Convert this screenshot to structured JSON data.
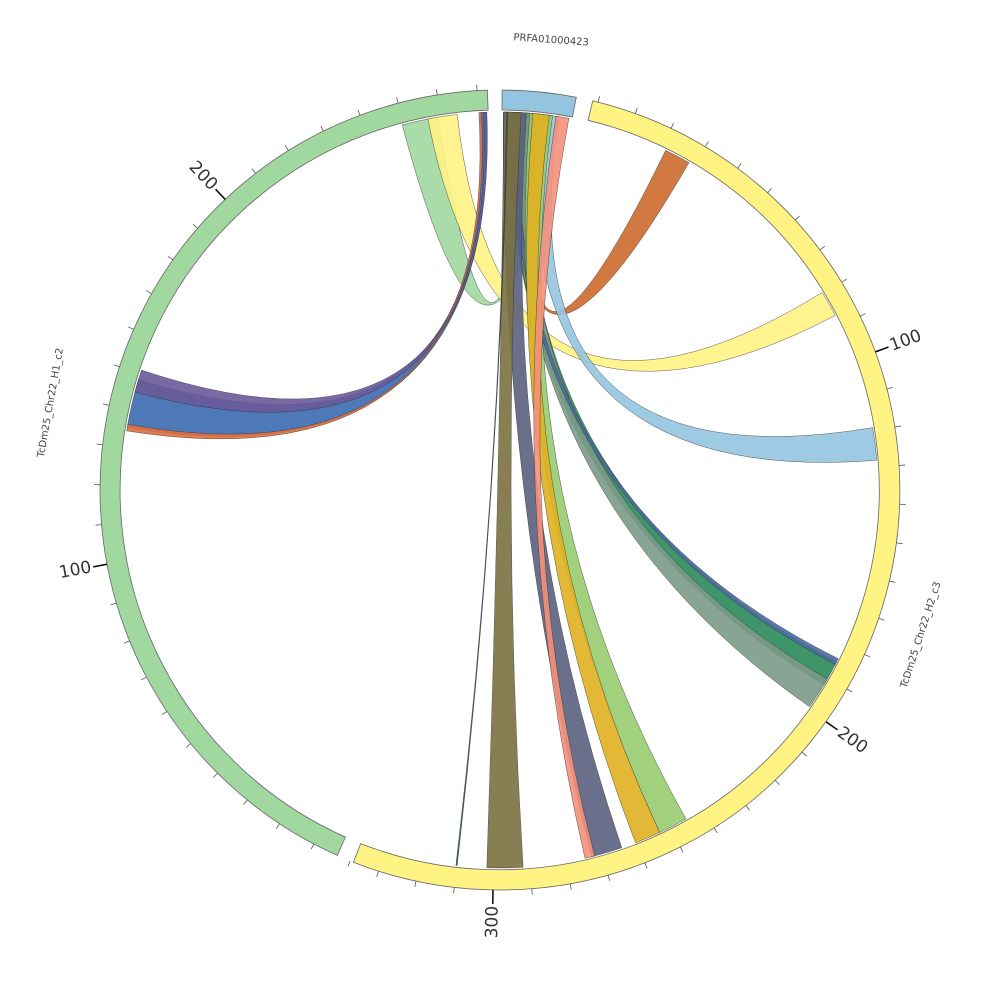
{
  "segments": [
    {
      "label": "PRFA01000423"
    },
    {
      "label": "TcDm25_Chr22_H2_c3",
      "ticks": [
        "100",
        "200",
        "300"
      ]
    },
    {
      "label": "TcDm25_Chr22_H1_c2",
      "ticks": [
        "100",
        "200"
      ]
    }
  ]
}
